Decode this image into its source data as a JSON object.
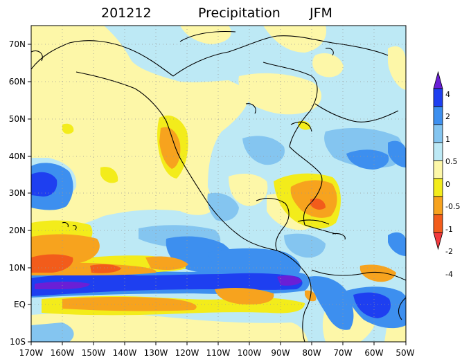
{
  "title": {
    "period": "201212",
    "variable": "Precipitation",
    "season": "JFM"
  },
  "map": {
    "lon_range": [
      -170,
      -50
    ],
    "lat_range": [
      -10,
      75
    ],
    "lon_ticks": [
      "170W",
      "160W",
      "150W",
      "140W",
      "130W",
      "120W",
      "110W",
      "100W",
      "90W",
      "80W",
      "70W",
      "60W",
      "50W"
    ],
    "lat_ticks": [
      "70N",
      "60N",
      "50N",
      "40N",
      "30N",
      "20N",
      "10N",
      "EQ",
      "10S"
    ],
    "gridlines": "dotted",
    "background_anomaly_color": "#bde9f5"
  },
  "colorbar": {
    "labels": [
      "4",
      "2",
      "1",
      "0.5",
      "0",
      "-0.5",
      "-1",
      "-2",
      "-4"
    ],
    "colors_top_to_bottom": [
      "#6a1fd6",
      "#1e3ff0",
      "#3d8fef",
      "#84c5f0",
      "#bde9f5",
      "#fdf7a8",
      "#f3ec1b",
      "#f7a31e",
      "#f25c1b",
      "#f2393d"
    ]
  },
  "anomaly_colors": {
    "very_wet": "#6a1fd6",
    "wet_strong": "#1e3ff0",
    "wet": "#3d8fef",
    "wet_light": "#84c5f0",
    "near_zero_wet": "#bde9f5",
    "near_zero_dry": "#fdf7a8",
    "dry": "#f3ec1b",
    "dry_strong": "#f7a31e",
    "very_dry": "#f25c1b"
  }
}
